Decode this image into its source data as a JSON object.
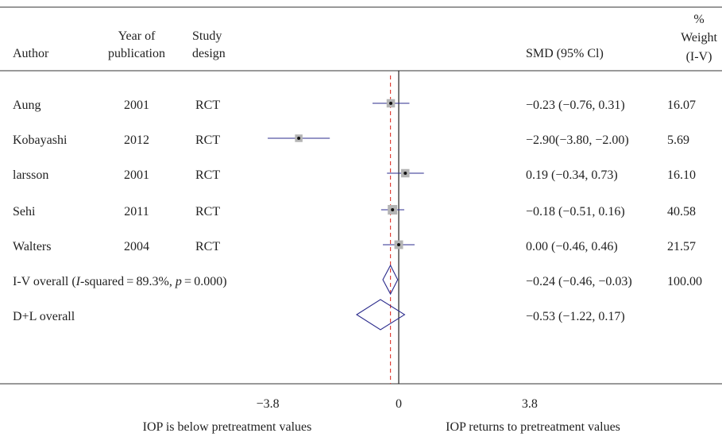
{
  "chart_data": {
    "type": "forest",
    "headers": {
      "author": "Author",
      "year_line1": "Year of",
      "year_line2": "publication",
      "design_line1": "Study",
      "design_line2": "design",
      "smd": "SMD (95% Cl)",
      "weight_line1": "%",
      "weight_line2": "Weight",
      "weight_line3": "(I-V)"
    },
    "studies": [
      {
        "author": "Aung",
        "year": "2001",
        "design": "RCT",
        "smd": -0.23,
        "lo": -0.76,
        "hi": 0.31,
        "ci_text": "−0.23 (−0.76, 0.31)",
        "weight": "16.07"
      },
      {
        "author": "Kobayashi",
        "year": "2012",
        "design": "RCT",
        "smd": -2.9,
        "lo": -3.8,
        "hi": -2.0,
        "ci_text": "−2.90(−3.80, −2.00)",
        "weight": "5.69"
      },
      {
        "author": "larsson",
        "year": "2001",
        "design": "RCT",
        "smd": 0.19,
        "lo": -0.34,
        "hi": 0.73,
        "ci_text": "0.19 (−0.34, 0.73)",
        "weight": "16.10"
      },
      {
        "author": "Sehi",
        "year": "2011",
        "design": "RCT",
        "smd": -0.18,
        "lo": -0.51,
        "hi": 0.16,
        "ci_text": "−0.18 (−0.51, 0.16)",
        "weight": "40.58"
      },
      {
        "author": "Walters",
        "year": "2004",
        "design": "RCT",
        "smd": 0.0,
        "lo": -0.46,
        "hi": 0.46,
        "ci_text": "0.00 (−0.46, 0.46)",
        "weight": "21.57"
      }
    ],
    "overall": [
      {
        "label_pre": "I-V overall (",
        "label_italic_i": "I",
        "label_mid": "-squared = 89.3%, ",
        "label_italic_p": "p",
        "label_post": " = 0.000)",
        "smd": -0.24,
        "lo": -0.46,
        "hi": -0.03,
        "ci_text": "−0.24 (−0.46, −0.03)",
        "weight": "100.00"
      },
      {
        "label": "D+L overall",
        "smd": -0.53,
        "lo": -1.22,
        "hi": 0.17,
        "ci_text": "−0.53 (−1.22, 0.17)",
        "weight": ""
      }
    ],
    "xaxis": {
      "ticks": [
        -3.8,
        0,
        3.8
      ],
      "tick_labels": [
        "−3.8",
        "0",
        "3.8"
      ],
      "range": [
        -3.8,
        3.8
      ],
      "left_label": "IOP is below pretreatment values",
      "right_label": "IOP returns to pretreatment values"
    },
    "colors": {
      "ci_line": "#2b2b8c",
      "box_fill": "#b4b4b4",
      "diamond": "#2b2b8c",
      "overall_line": "#e0433a",
      "null_line": "#222222",
      "rule": "#333333"
    }
  }
}
